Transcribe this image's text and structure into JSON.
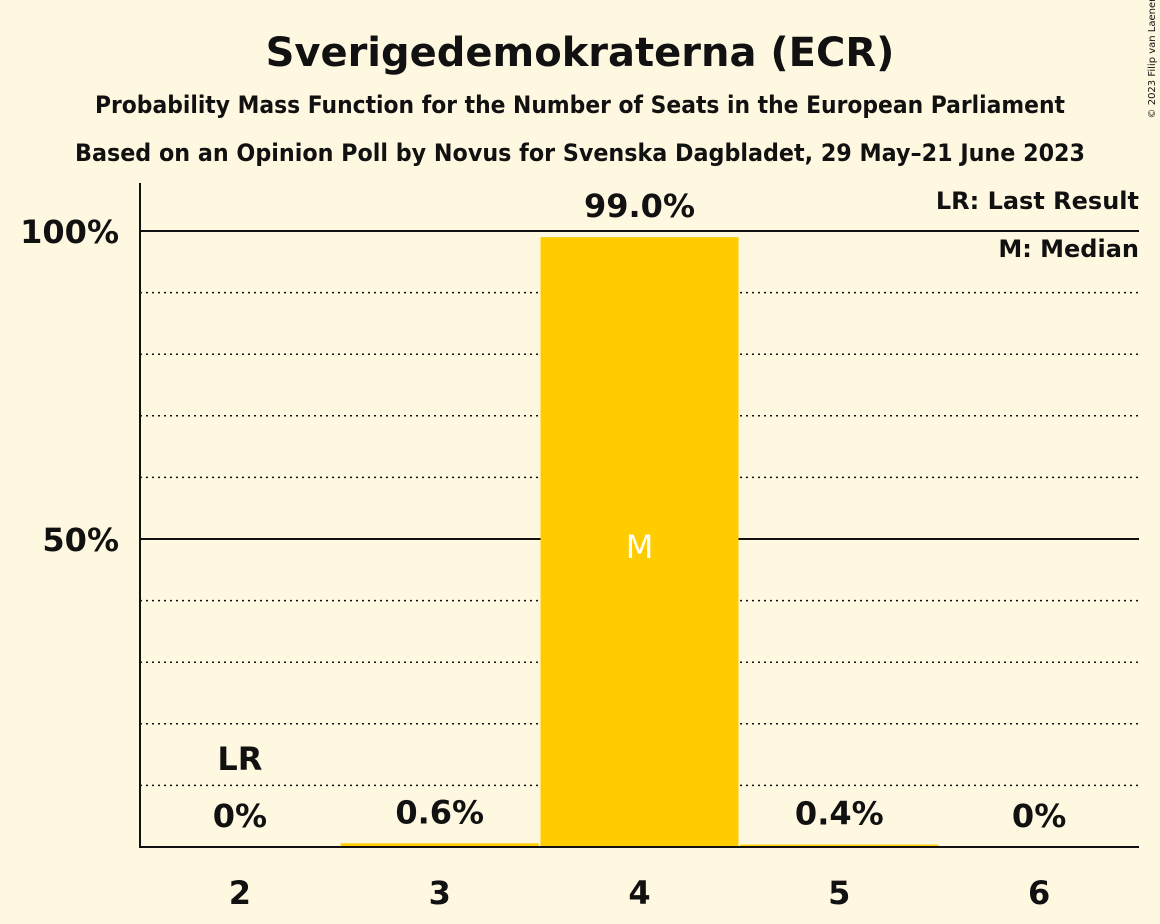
{
  "chart_data": {
    "type": "bar",
    "title": "Sverigedemokraterna (ECR)",
    "subtitle": "Probability Mass Function for the Number of Seats in the European Parliament",
    "subtitle2": "Based on an Opinion Poll by Novus for Svenska Dagbladet, 29 May–21 June 2023",
    "copyright": "© 2023 Filip van Laenen",
    "categories": [
      "2",
      "3",
      "4",
      "5",
      "6"
    ],
    "values": [
      0,
      0.6,
      99.0,
      0.4,
      0
    ],
    "value_labels": [
      "0%",
      "0.6%",
      "99.0%",
      "0.4%",
      "0%"
    ],
    "ylim": [
      0,
      100
    ],
    "yticks": [
      {
        "value": 50,
        "label": "50%"
      },
      {
        "value": 100,
        "label": "100%"
      }
    ],
    "minor_gridlines": [
      10,
      20,
      30,
      40,
      60,
      70,
      80,
      90
    ],
    "last_result": {
      "category": "2",
      "label": "LR"
    },
    "median": {
      "category": "4",
      "label": "M"
    },
    "legend": {
      "position": "top-right",
      "entries": [
        "LR: Last Result",
        "M: Median"
      ]
    },
    "bar_color": "#ffcc00",
    "background_color": "#fff8e1",
    "text_color": "#111111",
    "xlabel": "",
    "ylabel": "",
    "grid": true
  }
}
